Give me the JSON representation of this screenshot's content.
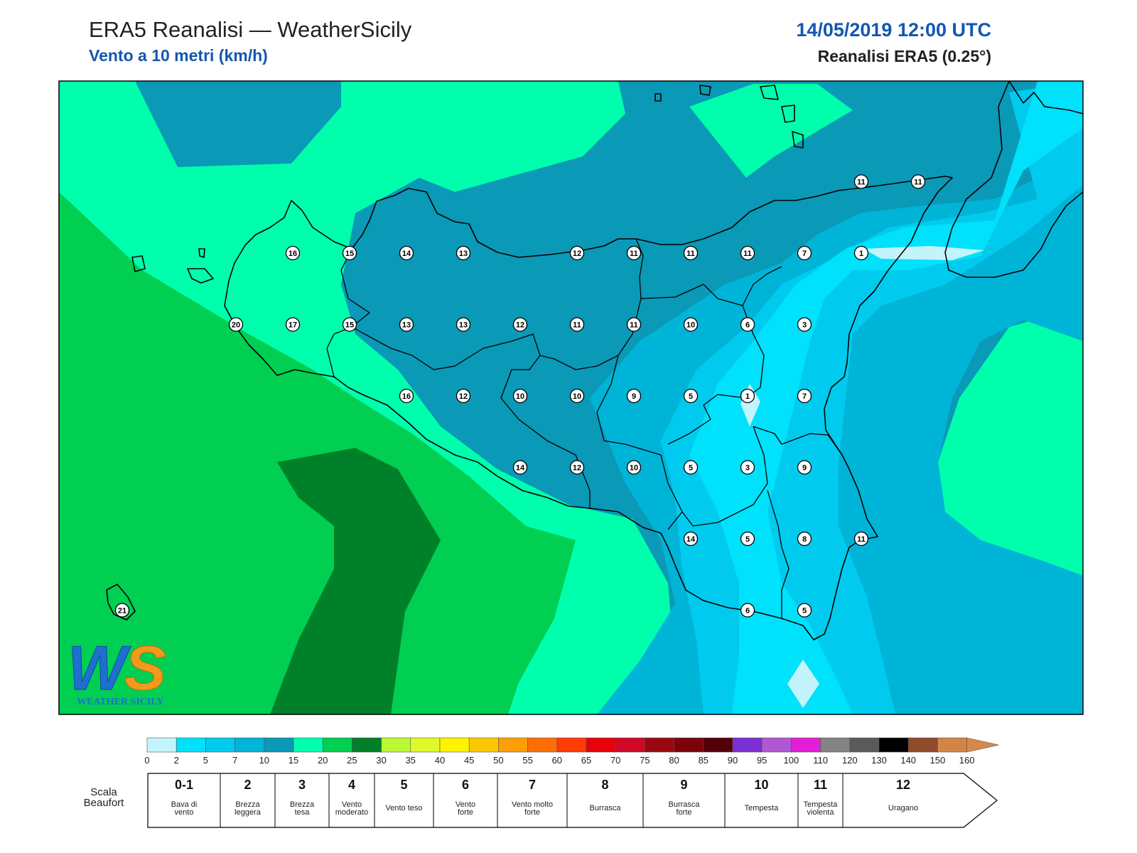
{
  "header": {
    "title": "ERA5 Reanalisi — WeatherSicily",
    "subtitle": "Vento a 10 metri (km/h)",
    "datetime": "14/05/2019 12:00 UTC",
    "source": "Reanalisi ERA5 (0.25°)"
  },
  "logo": {
    "letters": "WS",
    "name": "WEATHER SICILY"
  },
  "stations": [
    {
      "v": "16",
      "lon": 12.5,
      "lat": 38.0
    },
    {
      "v": "15",
      "lon": 13.0,
      "lat": 38.0
    },
    {
      "v": "14",
      "lon": 13.5,
      "lat": 38.0
    },
    {
      "v": "13",
      "lon": 14.0,
      "lat": 38.0
    },
    {
      "v": "12",
      "lon": 15.0,
      "lat": 38.0
    },
    {
      "v": "11",
      "lon": 15.5,
      "lat": 38.0
    },
    {
      "v": "11",
      "lon": 16.0,
      "lat": 38.0
    },
    {
      "v": "11",
      "lon": 16.5,
      "lat": 38.0
    },
    {
      "v": "7",
      "lon": 17.0,
      "lat": 38.0
    },
    {
      "v": "1",
      "lon": 17.5,
      "lat": 38.0
    },
    {
      "v": "11",
      "lon": 17.5,
      "lat": 38.5
    },
    {
      "v": "11",
      "lon": 18.0,
      "lat": 38.5
    },
    {
      "v": "20",
      "lon": 12.0,
      "lat": 37.5
    },
    {
      "v": "17",
      "lon": 12.5,
      "lat": 37.5
    },
    {
      "v": "15",
      "lon": 13.0,
      "lat": 37.5
    },
    {
      "v": "13",
      "lon": 13.5,
      "lat": 37.5
    },
    {
      "v": "13",
      "lon": 14.0,
      "lat": 37.5
    },
    {
      "v": "12",
      "lon": 14.5,
      "lat": 37.5
    },
    {
      "v": "11",
      "lon": 15.0,
      "lat": 37.5
    },
    {
      "v": "11",
      "lon": 15.5,
      "lat": 37.5
    },
    {
      "v": "10",
      "lon": 16.0,
      "lat": 37.5
    },
    {
      "v": "6",
      "lon": 16.5,
      "lat": 37.5
    },
    {
      "v": "3",
      "lon": 17.0,
      "lat": 37.5
    },
    {
      "v": "16",
      "lon": 13.5,
      "lat": 37.0
    },
    {
      "v": "12",
      "lon": 14.0,
      "lat": 37.0
    },
    {
      "v": "10",
      "lon": 14.5,
      "lat": 37.0
    },
    {
      "v": "10",
      "lon": 15.0,
      "lat": 37.0
    },
    {
      "v": "9",
      "lon": 15.5,
      "lat": 37.0
    },
    {
      "v": "5",
      "lon": 16.0,
      "lat": 37.0
    },
    {
      "v": "1",
      "lon": 16.5,
      "lat": 37.0
    },
    {
      "v": "7",
      "lon": 17.0,
      "lat": 37.0
    },
    {
      "v": "14",
      "lon": 14.5,
      "lat": 36.5
    },
    {
      "v": "12",
      "lon": 15.0,
      "lat": 36.5
    },
    {
      "v": "10",
      "lon": 15.5,
      "lat": 36.5
    },
    {
      "v": "5",
      "lon": 16.0,
      "lat": 36.5
    },
    {
      "v": "3",
      "lon": 16.5,
      "lat": 36.5
    },
    {
      "v": "9",
      "lon": 17.0,
      "lat": 36.5
    },
    {
      "v": "14",
      "lon": 16.0,
      "lat": 36.0
    },
    {
      "v": "5",
      "lon": 16.5,
      "lat": 36.0
    },
    {
      "v": "8",
      "lon": 17.0,
      "lat": 36.0
    },
    {
      "v": "11",
      "lon": 17.5,
      "lat": 36.0
    },
    {
      "v": "6",
      "lon": 16.5,
      "lat": 35.5
    },
    {
      "v": "5",
      "lon": 17.0,
      "lat": 35.5
    },
    {
      "v": "21",
      "lon": 11.0,
      "lat": 35.5
    }
  ],
  "colorbar": {
    "ticks": [
      "0",
      "2",
      "5",
      "7",
      "10",
      "15",
      "20",
      "25",
      "30",
      "35",
      "40",
      "45",
      "50",
      "55",
      "60",
      "65",
      "70",
      "75",
      "80",
      "85",
      "90",
      "95",
      "100",
      "110",
      "120",
      "130",
      "140",
      "150",
      "160"
    ],
    "colors": [
      "#c4f4fb",
      "#00e1fb",
      "#00cbef",
      "#00b4d8",
      "#0a99b6",
      "#00ffad",
      "#00cf52",
      "#008129",
      "#bcf935",
      "#e1f929",
      "#fef301",
      "#fec703",
      "#fe9e05",
      "#fe6e05",
      "#fe3b05",
      "#e70108",
      "#cf0826",
      "#9b0710",
      "#7c0309",
      "#540008",
      "#7a2fd2",
      "#b157d3",
      "#e21ed6",
      "#838383",
      "#5a5a5a",
      "#000000",
      "#8f4b2b",
      "#d38548"
    ],
    "arrow_color": "#d8894a"
  },
  "beaufort": {
    "caption_line1": "Scala",
    "caption_line2": "Beaufort",
    "items": [
      {
        "num": "0-1",
        "desc1": "Bava di",
        "desc2": "vento"
      },
      {
        "num": "2",
        "desc1": "Brezza",
        "desc2": "leggera"
      },
      {
        "num": "3",
        "desc1": "Brezza",
        "desc2": "tesa"
      },
      {
        "num": "4",
        "desc1": "Vento",
        "desc2": "moderato"
      },
      {
        "num": "5",
        "desc1": "Vento teso",
        "desc2": ""
      },
      {
        "num": "6",
        "desc1": "Vento",
        "desc2": "forte"
      },
      {
        "num": "7",
        "desc1": "Vento molto",
        "desc2": "forte"
      },
      {
        "num": "8",
        "desc1": "Burrasca",
        "desc2": ""
      },
      {
        "num": "9",
        "desc1": "Burrasca",
        "desc2": "forte"
      },
      {
        "num": "10",
        "desc1": "Tempesta",
        "desc2": ""
      },
      {
        "num": "11",
        "desc1": "Tempesta",
        "desc2": "violenta"
      },
      {
        "num": "12",
        "desc1": "Uragano",
        "desc2": ""
      }
    ]
  }
}
